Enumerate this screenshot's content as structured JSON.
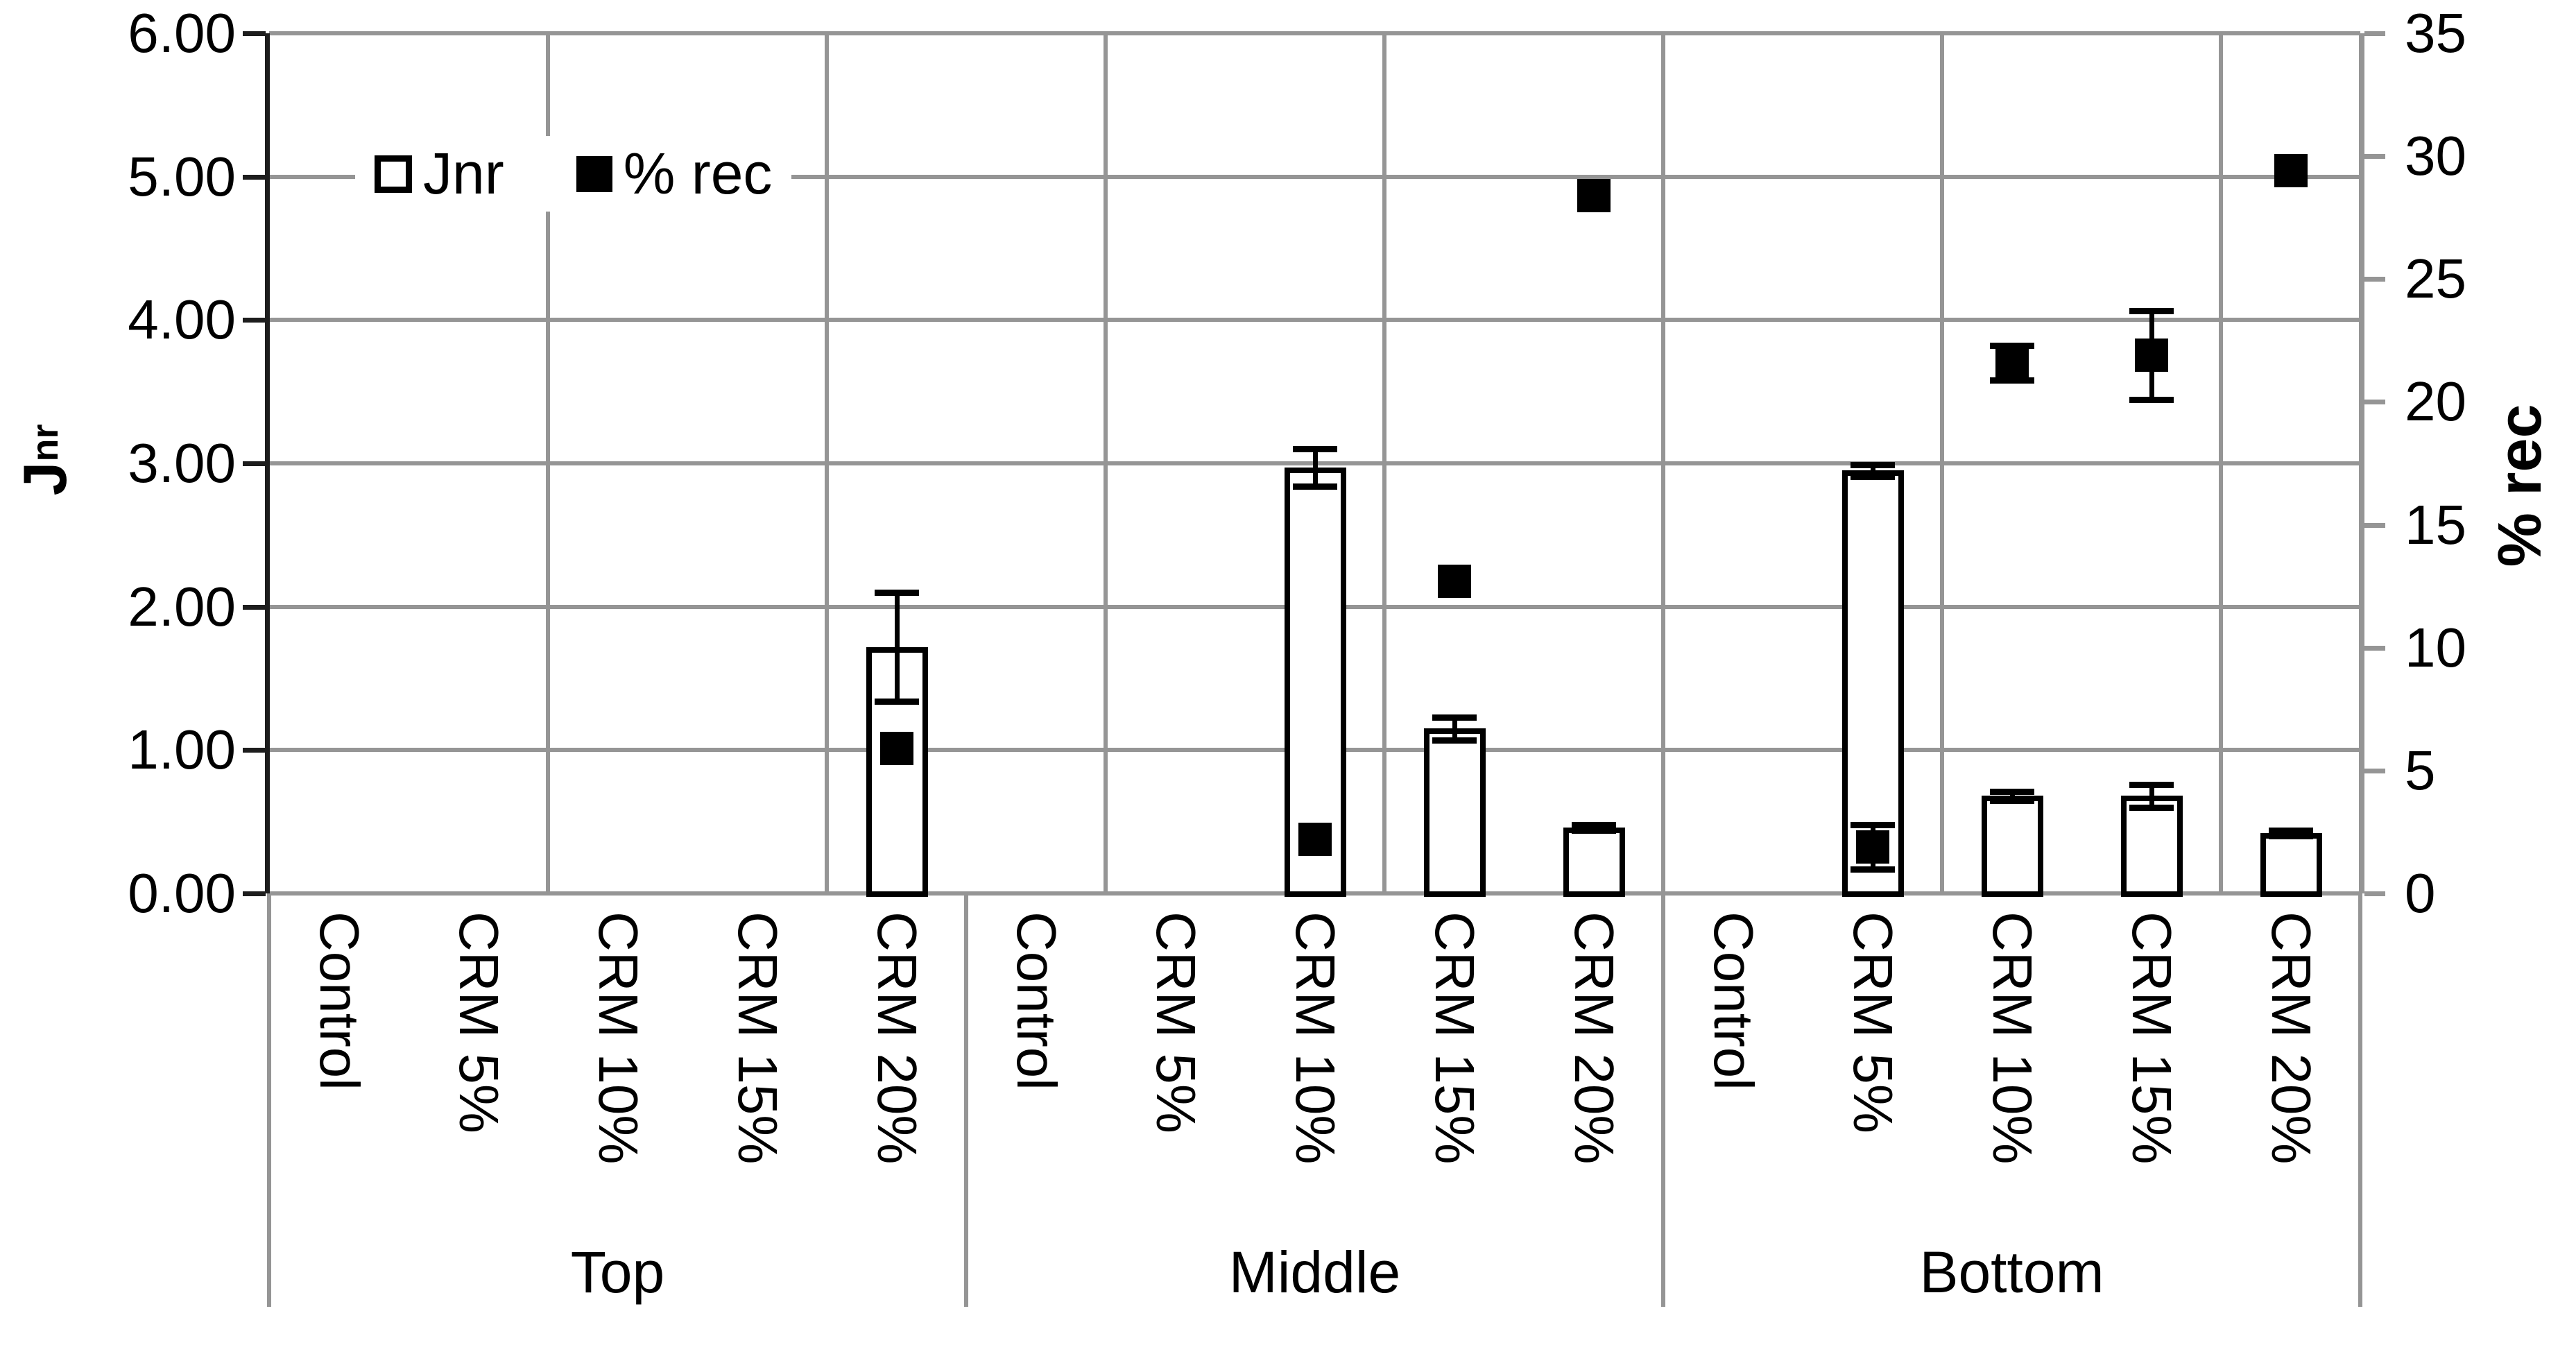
{
  "chart_data": {
    "type": "bar",
    "title": "",
    "description": "Dual-axis grouped chart: white bars = Jnr (left axis), black square markers = % rec (right axis), with error bars",
    "left_axis": {
      "label": "Jnr",
      "label_main": "J",
      "label_sub": "nr",
      "min": 0,
      "max": 6,
      "tick_step": 1,
      "tick_labels": [
        "6.00",
        "5.00",
        "4.00",
        "3.00",
        "2.00",
        "1.00",
        "0.00"
      ]
    },
    "right_axis": {
      "label": "% rec",
      "min": 0,
      "max": 35,
      "tick_step": 5,
      "tick_labels": [
        "35",
        "30",
        "25",
        "20",
        "15",
        "10",
        "5",
        "0"
      ]
    },
    "legend": [
      {
        "label": "Jnr",
        "marker": "open-square"
      },
      {
        "label": "% rec",
        "marker": "filled-square"
      }
    ],
    "grouped_axis": {
      "groups": [
        "Top",
        "Middle",
        "Bottom"
      ],
      "categories_per_group": [
        "Control",
        "CRM 5%",
        "CRM 10%",
        "CRM 15%",
        "CRM 20%"
      ]
    },
    "grid": "on",
    "colors": {
      "bar_fill": "#ffffff",
      "bar_border": "#000000",
      "marker": "#000000",
      "gridline": "#959595",
      "axis_line": "#1d1d1d"
    },
    "categories": [
      {
        "group": "Top",
        "label": "Control",
        "jnr": null,
        "jnr_err": null,
        "rec": null,
        "rec_err": null
      },
      {
        "group": "Top",
        "label": "CRM 5%",
        "jnr": null,
        "jnr_err": null,
        "rec": null,
        "rec_err": null
      },
      {
        "group": "Top",
        "label": "CRM 10%",
        "jnr": null,
        "jnr_err": null,
        "rec": null,
        "rec_err": null
      },
      {
        "group": "Top",
        "label": "CRM 15%",
        "jnr": null,
        "jnr_err": null,
        "rec": null,
        "rec_err": null
      },
      {
        "group": "Top",
        "label": "CRM 20%",
        "jnr": 1.72,
        "jnr_err": 0.38,
        "rec": 5.9,
        "rec_err": null
      },
      {
        "group": "Middle",
        "label": "Control",
        "jnr": null,
        "jnr_err": null,
        "rec": null,
        "rec_err": null
      },
      {
        "group": "Middle",
        "label": "CRM 5%",
        "jnr": null,
        "jnr_err": null,
        "rec": null,
        "rec_err": null
      },
      {
        "group": "Middle",
        "label": "CRM 10%",
        "jnr": 2.97,
        "jnr_err": 0.13,
        "rec": 2.2,
        "rec_err": null
      },
      {
        "group": "Middle",
        "label": "CRM 15%",
        "jnr": 1.15,
        "jnr_err": 0.08,
        "rec": 12.7,
        "rec_err": null
      },
      {
        "group": "Middle",
        "label": "CRM 20%",
        "jnr": 0.46,
        "jnr_err": 0.02,
        "rec": 28.4,
        "rec_err": null
      },
      {
        "group": "Bottom",
        "label": "Control",
        "jnr": null,
        "jnr_err": null,
        "rec": null,
        "rec_err": null
      },
      {
        "group": "Bottom",
        "label": "CRM 5%",
        "jnr": 2.95,
        "jnr_err": 0.04,
        "rec": 1.9,
        "rec_err": 0.9
      },
      {
        "group": "Bottom",
        "label": "CRM 10%",
        "jnr": 0.68,
        "jnr_err": 0.03,
        "rec": 21.6,
        "rec_err": 0.7
      },
      {
        "group": "Bottom",
        "label": "CRM 15%",
        "jnr": 0.68,
        "jnr_err": 0.08,
        "rec": 21.9,
        "rec_err": 1.8
      },
      {
        "group": "Bottom",
        "label": "CRM 20%",
        "jnr": 0.42,
        "jnr_err": 0.02,
        "rec": 29.4,
        "rec_err": null
      }
    ]
  }
}
